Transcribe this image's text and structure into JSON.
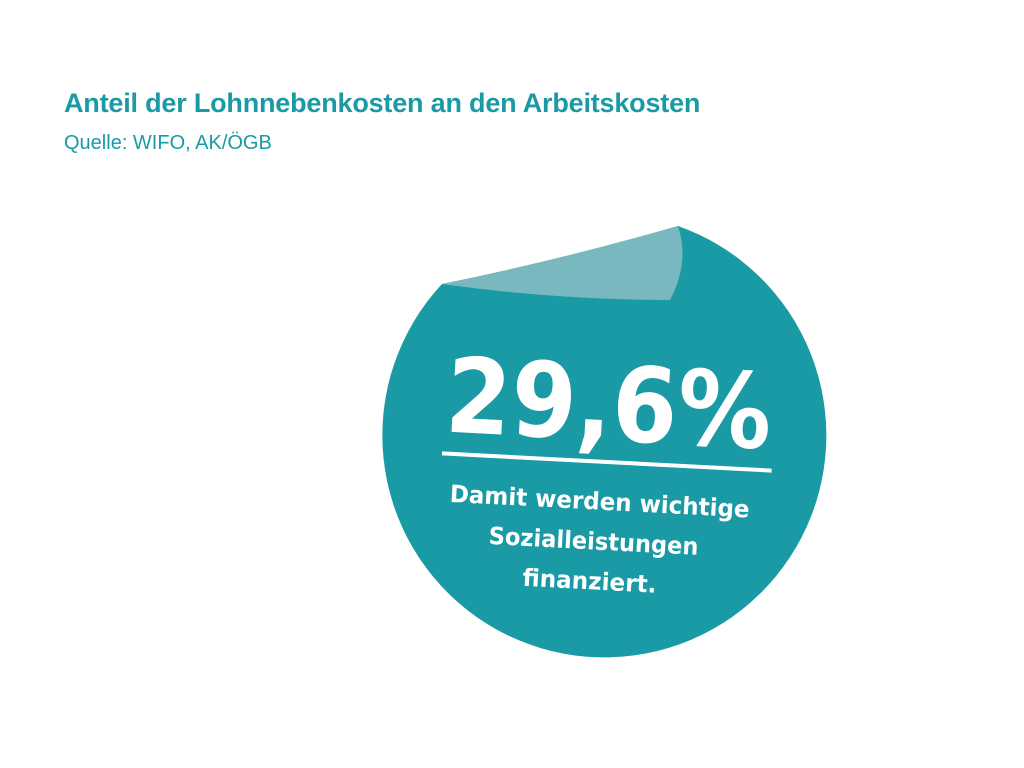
{
  "header": {
    "title": "Anteil der Lohnnebenkosten an den Arbeitskosten",
    "source": "Quelle: WIFO, AK/ÖGB"
  },
  "badge": {
    "value": "29,6%",
    "caption_lines": [
      "Damit werden wichtige",
      "Sozialleistungen",
      "finanziert."
    ]
  },
  "colors": {
    "accent": "#1a9aa5",
    "badge_fill": "#1a9aa5",
    "peel_fill": "#7ab8c0",
    "text_on_badge": "#ffffff"
  }
}
